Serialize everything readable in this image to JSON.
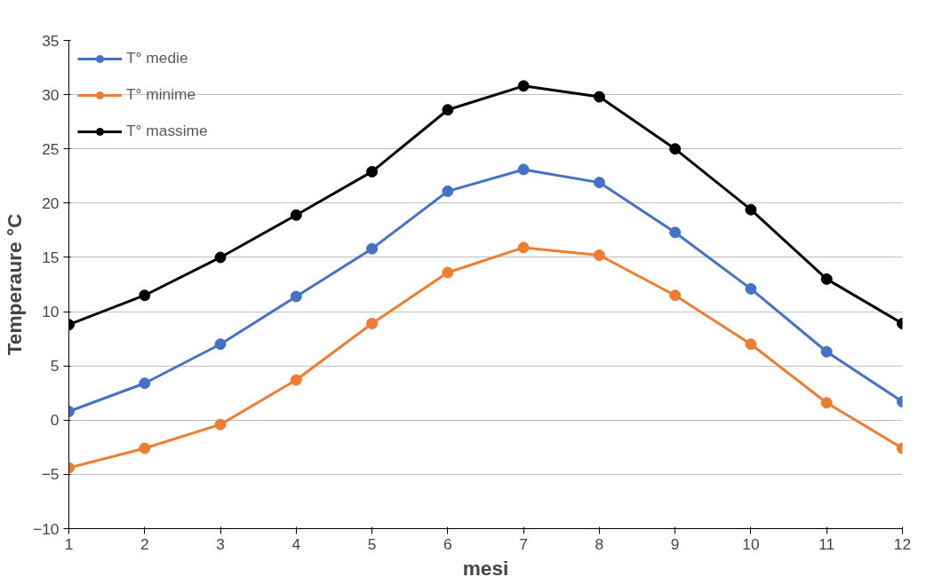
{
  "chart_data": {
    "type": "line",
    "xlabel": "mesi",
    "ylabel": "Temperaure °C",
    "x": [
      1,
      2,
      3,
      4,
      5,
      6,
      7,
      8,
      9,
      10,
      11,
      12
    ],
    "series": [
      {
        "name": "T° medie",
        "color": "#4472c4",
        "values": [
          0.8,
          3.4,
          7.0,
          11.4,
          15.8,
          21.1,
          23.1,
          21.9,
          17.3,
          12.1,
          6.3,
          1.7
        ]
      },
      {
        "name": "T° minime",
        "color": "#ed7d31",
        "values": [
          -4.4,
          -2.6,
          -0.4,
          3.7,
          8.9,
          13.6,
          15.9,
          15.2,
          11.5,
          7.0,
          1.6,
          -2.6
        ]
      },
      {
        "name": "T° massime",
        "color": "#000000",
        "values": [
          8.8,
          11.5,
          15.0,
          18.9,
          22.9,
          28.6,
          30.8,
          29.8,
          25.0,
          19.4,
          13.0,
          8.9
        ]
      }
    ],
    "xlim": [
      1,
      12
    ],
    "xticks": [
      1,
      2,
      3,
      4,
      5,
      6,
      7,
      8,
      9,
      10,
      11,
      12
    ],
    "ylim": [
      -10,
      35
    ],
    "yticks": [
      -10,
      -5,
      0,
      5,
      10,
      15,
      20,
      25,
      30,
      35
    ],
    "grid": "y",
    "legend": "top left",
    "marker": "circle",
    "line_style": "solid"
  }
}
